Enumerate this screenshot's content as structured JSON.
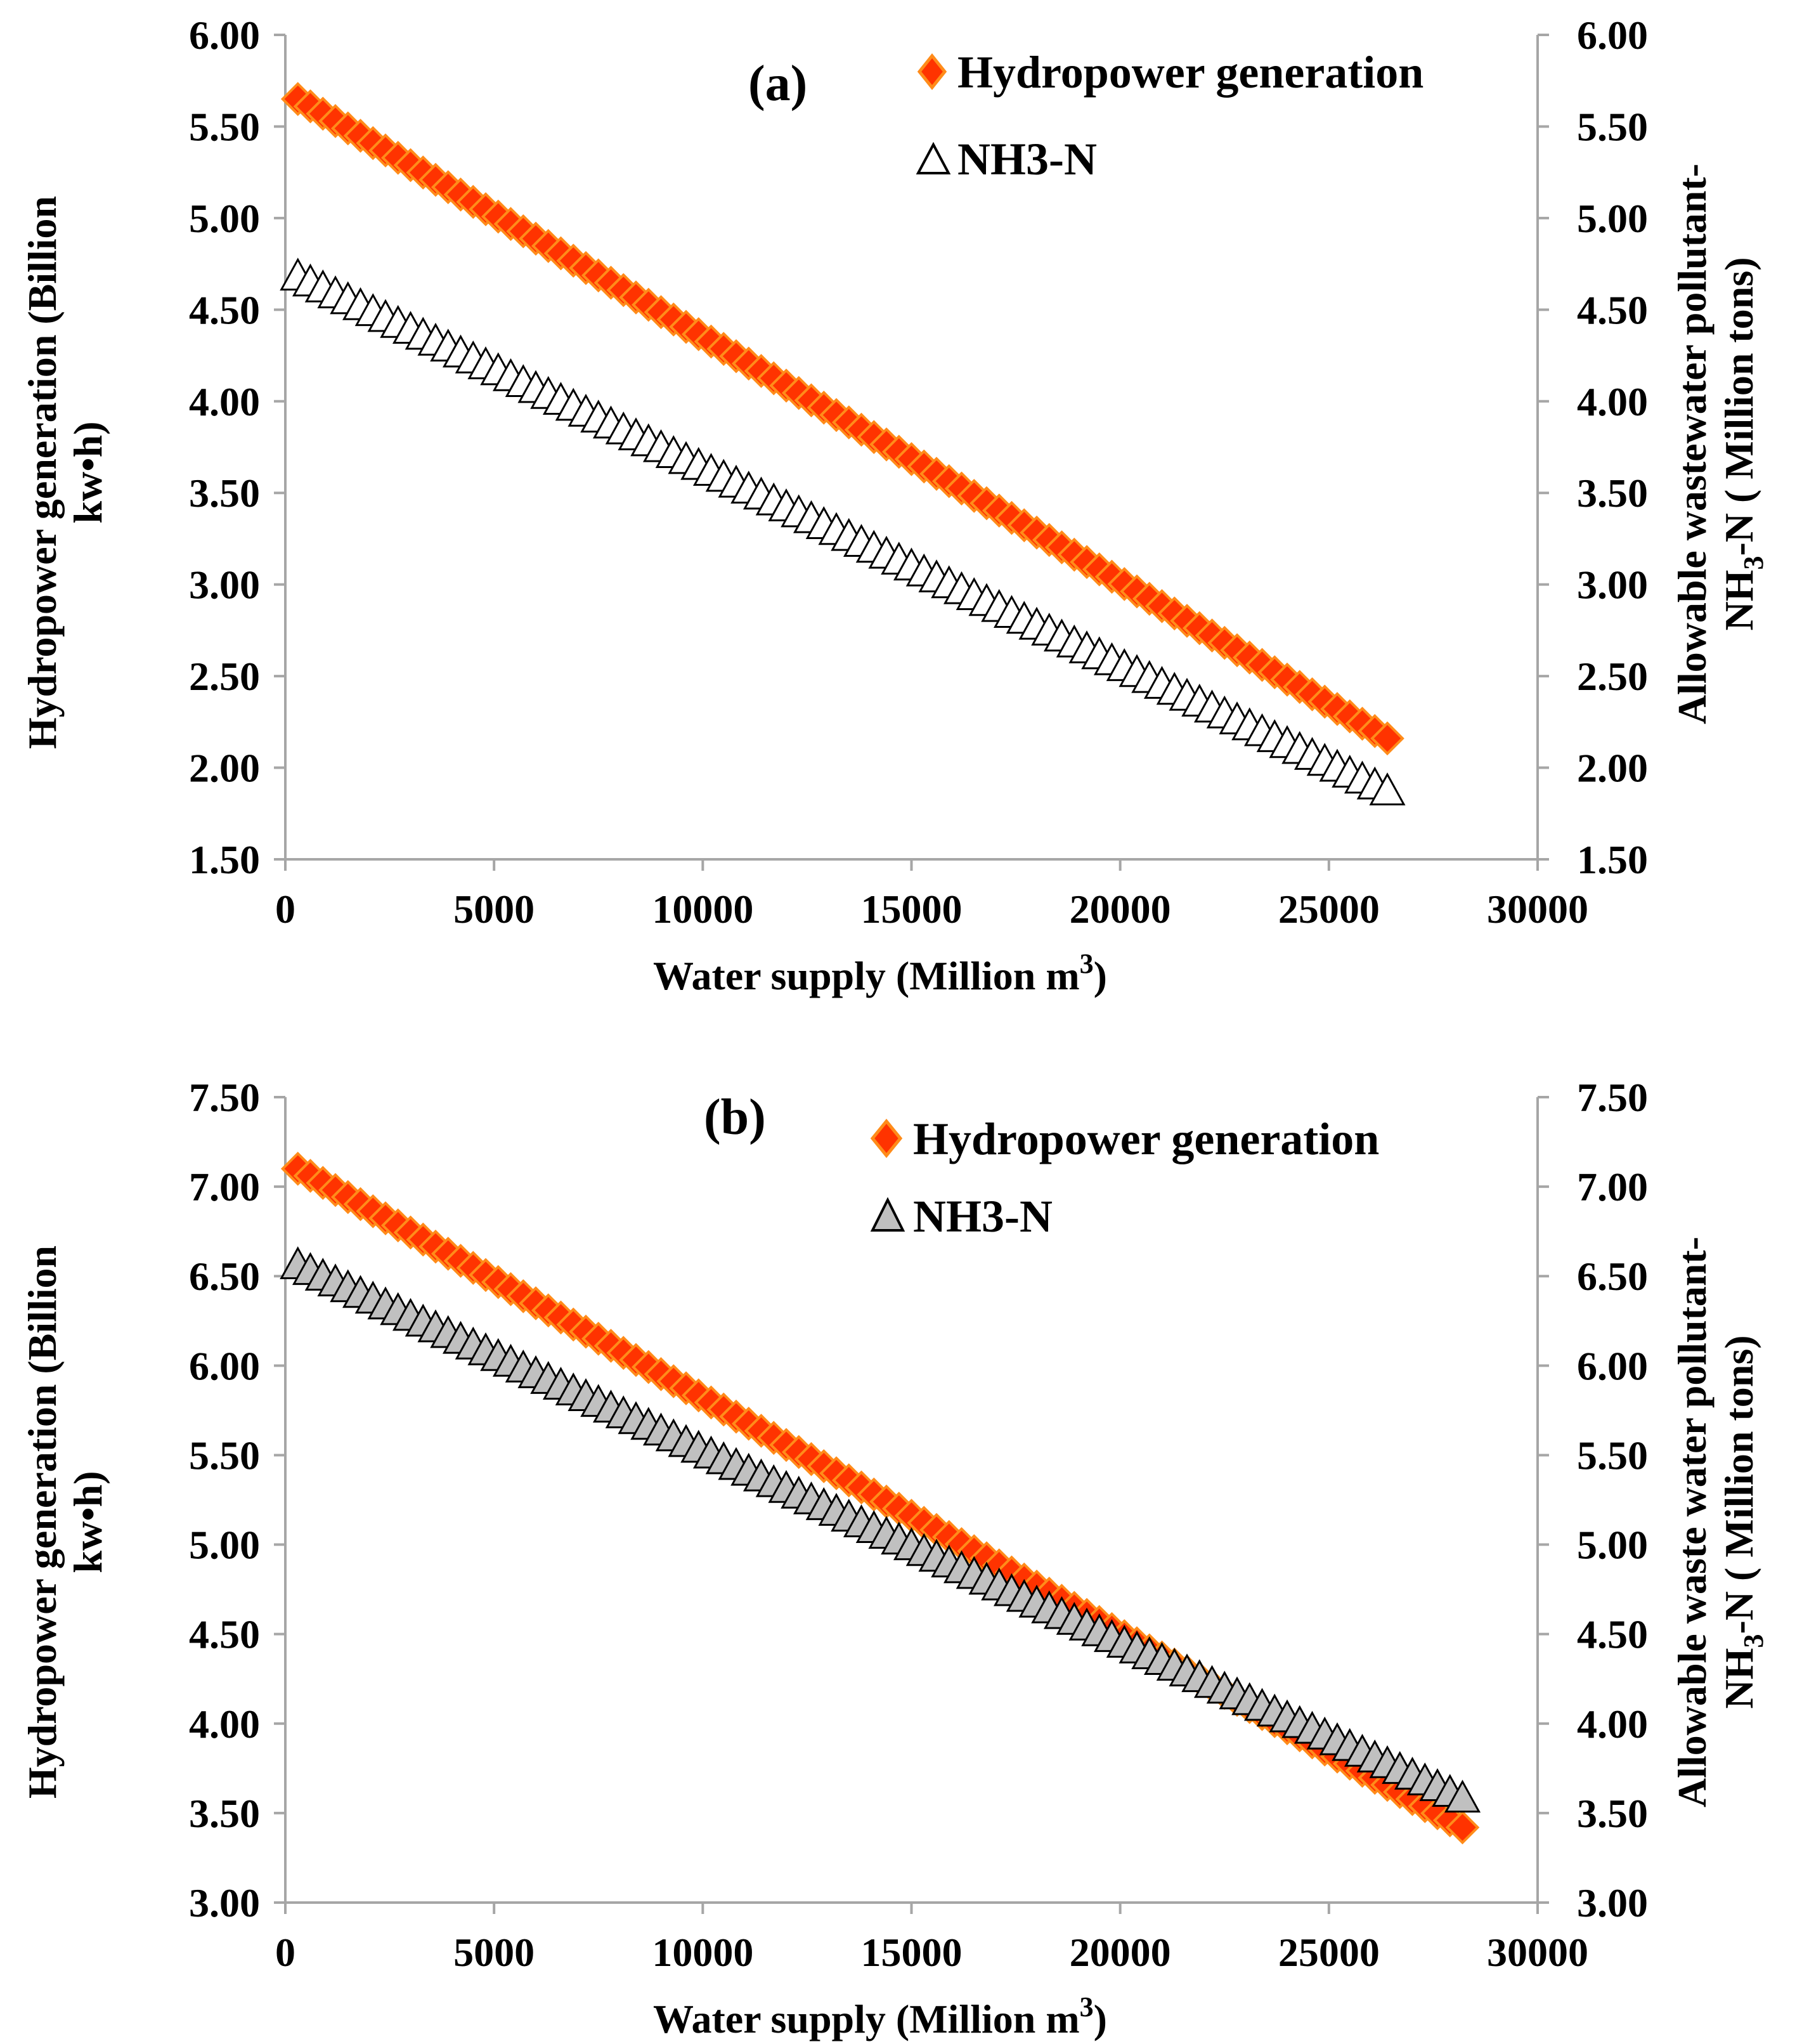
{
  "chart_data": [
    {
      "type": "scatter",
      "panel_label": "(a)",
      "xlabel": "Water supply (Million m³)",
      "xlabel_parts": [
        "Water supply (Million m",
        "3",
        ")"
      ],
      "ylabel": "Hydropower generation (Billion kw•h)",
      "ylabel_lines": [
        "Hydropower generation  (Billion",
        "kw•h)"
      ],
      "y2label": "Allowable wastewater pollutant-NH3-N ( Million tons)",
      "y2label_line1": "Allowable wastewater pollutant-",
      "y2label_line2_parts": [
        "NH",
        "3",
        "-N ( Million tons)"
      ],
      "xlim": [
        0,
        30000
      ],
      "ylim": [
        1.5,
        6.0
      ],
      "y2lim": [
        1.5,
        6.0
      ],
      "xticks": [
        "0",
        "5000",
        "10000",
        "15000",
        "20000",
        "25000",
        "30000"
      ],
      "yticks": [
        "1.50",
        "2.00",
        "2.50",
        "3.00",
        "3.50",
        "4.00",
        "4.50",
        "5.00",
        "5.50",
        "6.00"
      ],
      "y2ticks": [
        "1.50",
        "2.00",
        "2.50",
        "3.00",
        "3.50",
        "4.00",
        "4.50",
        "5.00",
        "5.50",
        "6.00"
      ],
      "legend_position": "top-right",
      "series": [
        {
          "name": "Hydropower generation",
          "marker": "diamond",
          "color": "#ff3300",
          "stroke": "#ff8c1a",
          "x_start": 300,
          "x_end": 26400,
          "x_step": 300,
          "y_start": 5.65,
          "y_end": 2.16
        },
        {
          "name": "NH3-N",
          "marker": "triangle",
          "color": "#ffffff",
          "stroke": "#000000",
          "x_start": 300,
          "x_end": 26400,
          "x_step": 300,
          "y_start": 4.68,
          "y_end": 1.87
        }
      ]
    },
    {
      "type": "scatter",
      "panel_label": "(b)",
      "xlabel": "Water supply (Million m³)",
      "xlabel_parts": [
        "Water supply (Million m",
        "3",
        ")"
      ],
      "ylabel": "Hydropower generation (Billion kw•h)",
      "ylabel_lines": [
        "Hydropower generation  (Billion",
        "kw•h)"
      ],
      "y2label": "Allowable waste water pollutant-NH3-N ( Million tons)",
      "y2label_line1": "Allowable waste  water pollutant-",
      "y2label_line2_parts": [
        "NH",
        "3",
        "-N ( Million tons)"
      ],
      "xlim": [
        0,
        30000
      ],
      "ylim": [
        3.0,
        7.5
      ],
      "y2lim": [
        3.0,
        7.5
      ],
      "xticks": [
        "0",
        "5000",
        "10000",
        "15000",
        "20000",
        "25000",
        "30000"
      ],
      "yticks": [
        "3.00",
        "3.50",
        "4.00",
        "4.50",
        "5.00",
        "5.50",
        "6.00",
        "6.50",
        "7.00",
        "7.50"
      ],
      "y2ticks": [
        "3.00",
        "3.50",
        "4.00",
        "4.50",
        "5.00",
        "5.50",
        "6.00",
        "6.50",
        "7.00",
        "7.50"
      ],
      "legend_position": "top-right",
      "series": [
        {
          "name": "Hydropower generation",
          "marker": "diamond",
          "color": "#ff3300",
          "stroke": "#ff8c1a",
          "x_start": 300,
          "x_end": 28200,
          "x_step": 300,
          "y_start": 7.1,
          "y_end": 3.42
        },
        {
          "name": "NH3-N",
          "marker": "triangle",
          "color": "#c0c0c0",
          "stroke": "#000000",
          "x_start": 300,
          "x_end": 28200,
          "x_step": 300,
          "y_start": 6.56,
          "y_end": 3.58
        }
      ]
    }
  ]
}
